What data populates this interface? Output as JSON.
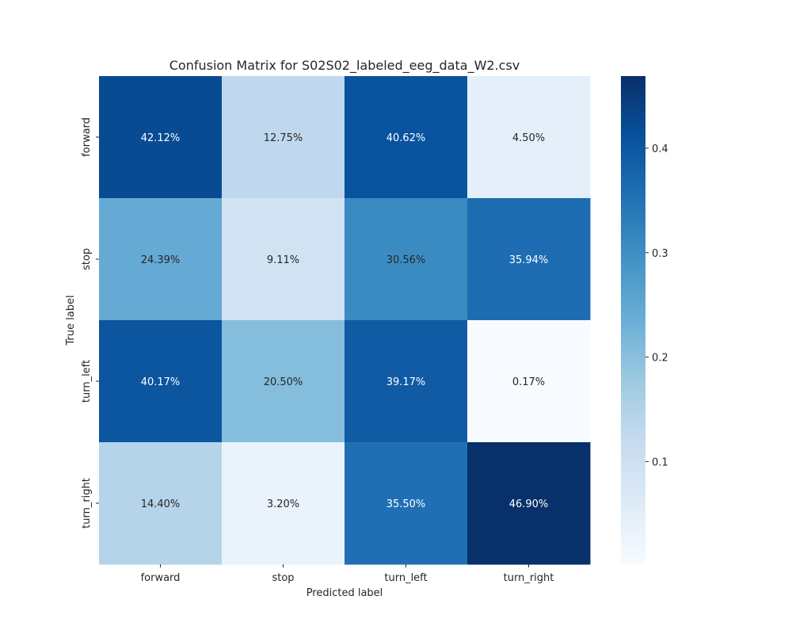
{
  "chart_data": {
    "type": "heatmap",
    "title": "Confusion Matrix for S02S02_labeled_eeg_data_W2.csv",
    "xlabel": "Predicted label",
    "ylabel": "True label",
    "x_categories": [
      "forward",
      "stop",
      "turn_left",
      "turn_right"
    ],
    "y_categories": [
      "forward",
      "stop",
      "turn_left",
      "turn_right"
    ],
    "values": [
      [
        0.4212,
        0.1275,
        0.4062,
        0.045
      ],
      [
        0.2439,
        0.0911,
        0.3056,
        0.3594
      ],
      [
        0.4017,
        0.205,
        0.3917,
        0.0017
      ],
      [
        0.144,
        0.032,
        0.355,
        0.469
      ]
    ],
    "annotations": [
      [
        "42.12%",
        "12.75%",
        "40.62%",
        "4.50%"
      ],
      [
        "24.39%",
        "9.11%",
        "30.56%",
        "35.94%"
      ],
      [
        "40.17%",
        "20.50%",
        "39.17%",
        "0.17%"
      ],
      [
        "14.40%",
        "3.20%",
        "35.50%",
        "46.90%"
      ]
    ],
    "colormap": "Blues",
    "color_range": [
      0.0017,
      0.469
    ],
    "colorbar_ticks": [
      "0.1",
      "0.2",
      "0.3",
      "0.4"
    ],
    "colorbar_tick_values": [
      0.1,
      0.2,
      0.3,
      0.4
    ],
    "colormap_stops": [
      "#f7fbff",
      "#deebf7",
      "#c6dbef",
      "#9ecae1",
      "#6baed6",
      "#4292c6",
      "#2171b5",
      "#08519c",
      "#08306b"
    ]
  }
}
